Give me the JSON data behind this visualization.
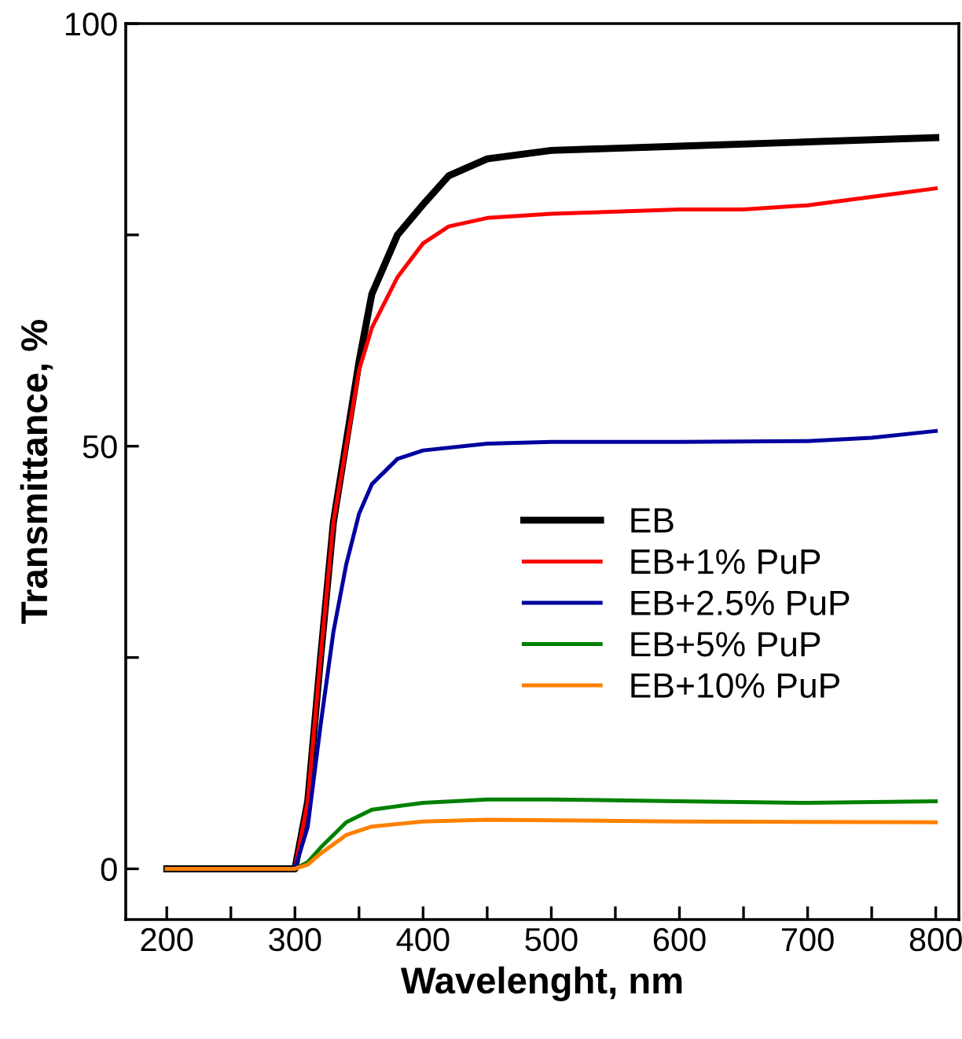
{
  "chart_data": {
    "type": "line",
    "xlabel": "Wavelenght, nm",
    "ylabel": "Transmittance, %",
    "xlim": [
      168,
      818
    ],
    "ylim": [
      -6,
      100
    ],
    "xticks": [
      200,
      {
        "value": 250,
        "label": null
      },
      300,
      {
        "value": 350,
        "label": null
      },
      400,
      {
        "value": 450,
        "label": null
      },
      500,
      {
        "value": 550,
        "label": null
      },
      600,
      {
        "value": 650,
        "label": null
      },
      700,
      {
        "value": 750,
        "label": null
      },
      800
    ],
    "yticks": [
      0,
      {
        "value": 25,
        "label": null
      },
      50,
      {
        "value": 75,
        "label": null
      },
      100
    ],
    "grid": false,
    "legend": "right",
    "marker": "none",
    "line_style": "solid",
    "series": [
      {
        "name": "EB",
        "color": "#000000",
        "x": [
          200,
          300,
          310,
          320,
          330,
          350,
          360,
          380,
          400,
          420,
          450,
          500,
          600,
          700,
          800
        ],
        "values": [
          0,
          0,
          8,
          25,
          41,
          60,
          68,
          75,
          78.6,
          82,
          84,
          85,
          85.5,
          86,
          86.5
        ]
      },
      {
        "name": "EB+1% PuP",
        "color": "#ff0000",
        "x": [
          200,
          300,
          310,
          320,
          330,
          350,
          360,
          380,
          400,
          420,
          450,
          500,
          600,
          650,
          700,
          750,
          800
        ],
        "values": [
          0,
          0,
          8,
          25,
          41,
          59,
          64,
          70,
          74,
          76,
          77,
          77.5,
          78,
          78,
          78.5,
          79.5,
          80.5
        ]
      },
      {
        "name": "EB+2.5% PuP",
        "color": "#0000a0",
        "x": [
          200,
          300,
          310,
          320,
          330,
          340,
          350,
          360,
          380,
          400,
          450,
          500,
          600,
          700,
          750,
          800
        ],
        "values": [
          0,
          0,
          5,
          17,
          28,
          36,
          42,
          45.5,
          48.5,
          49.5,
          50.3,
          50.5,
          50.5,
          50.6,
          51,
          51.8
        ]
      },
      {
        "name": "EB+5% PuP",
        "color": "#008000",
        "x": [
          200,
          300,
          310,
          320,
          340,
          360,
          400,
          450,
          500,
          600,
          700,
          800
        ],
        "values": [
          0,
          0,
          0.8,
          2.5,
          5.5,
          7,
          7.8,
          8.2,
          8.2,
          8,
          7.8,
          8
        ]
      },
      {
        "name": "EB+10% PuP",
        "color": "#ff8000",
        "x": [
          200,
          300,
          310,
          320,
          340,
          360,
          400,
          450,
          600,
          800
        ],
        "values": [
          0,
          0,
          0.5,
          1.8,
          4,
          5,
          5.6,
          5.8,
          5.6,
          5.5
        ]
      }
    ]
  }
}
